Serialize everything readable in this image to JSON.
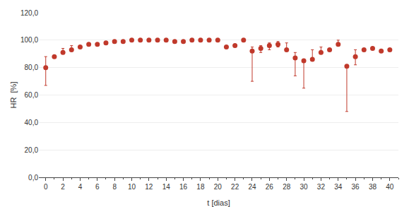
{
  "chart_data": {
    "type": "scatter",
    "xlabel": "t [dias]",
    "ylabel": "HR  [%]",
    "x": [
      0,
      1,
      2,
      3,
      4,
      5,
      6,
      7,
      8,
      9,
      10,
      11,
      12,
      13,
      14,
      15,
      16,
      17,
      18,
      19,
      20,
      21,
      22,
      23,
      24,
      25,
      26,
      27,
      28,
      29,
      30,
      31,
      32,
      33,
      34,
      35,
      36,
      37,
      38,
      39,
      40
    ],
    "values": [
      80,
      88,
      91,
      93,
      95,
      97,
      97,
      98,
      99,
      99,
      100,
      100,
      100,
      100,
      100,
      99,
      99,
      100,
      100,
      100,
      100,
      95,
      96,
      100,
      92,
      94,
      96,
      97,
      93,
      87,
      85,
      86,
      91,
      93,
      97,
      81,
      88,
      93,
      94,
      92,
      93
    ],
    "yerr_low": [
      13,
      0,
      0,
      0,
      0,
      0,
      0,
      0,
      0,
      0,
      0,
      0,
      0,
      0,
      0,
      0,
      0,
      0,
      0,
      0,
      0,
      0,
      0,
      0,
      22,
      3,
      3,
      2,
      0,
      13,
      20,
      0,
      0,
      0,
      0,
      33,
      6,
      0,
      0,
      0,
      0
    ],
    "yerr_high": [
      8,
      0,
      3,
      3,
      0,
      0,
      0,
      0,
      0,
      0,
      0,
      0,
      0,
      0,
      0,
      0,
      0,
      0,
      0,
      0,
      0,
      0,
      0,
      0,
      3,
      2,
      2,
      2,
      5,
      4,
      0,
      7,
      4,
      0,
      3,
      0,
      5,
      0,
      0,
      0,
      0
    ],
    "color": "#c0392b",
    "marker": "circle",
    "xlim": [
      -0.8,
      41
    ],
    "ylim": [
      0,
      120
    ],
    "xticks": [
      0,
      2,
      4,
      6,
      8,
      10,
      12,
      14,
      16,
      18,
      20,
      22,
      24,
      26,
      28,
      30,
      32,
      34,
      36,
      38,
      40
    ],
    "yticks": [
      {
        "value": 0,
        "label": "0,0"
      },
      {
        "value": 20,
        "label": "20,0"
      },
      {
        "value": 40,
        "label": "40,0"
      },
      {
        "value": 60,
        "label": "60,0"
      },
      {
        "value": 80,
        "label": "80,0"
      },
      {
        "value": 100,
        "label": "100,0"
      },
      {
        "value": 120,
        "label": "120,0"
      }
    ],
    "grid": "y"
  }
}
